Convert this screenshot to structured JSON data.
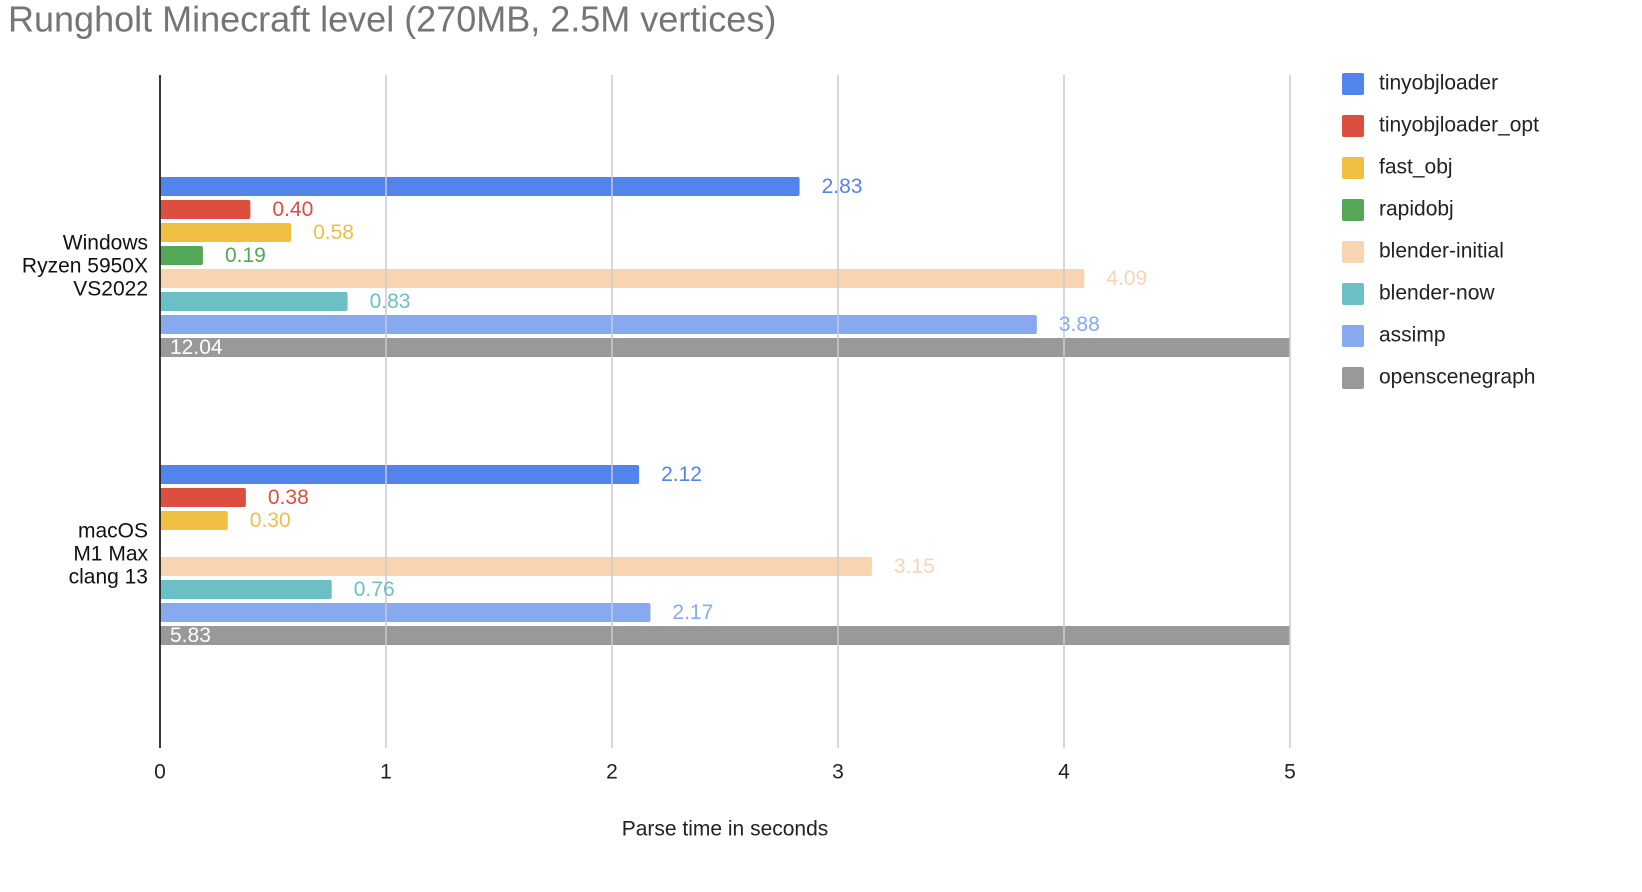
{
  "chart_data": {
    "type": "bar",
    "orientation": "horizontal",
    "title": "Rungholt Minecraft level (270MB, 2.5M vertices)",
    "x_label": "Parse time in seconds",
    "categories": [
      [
        "Windows",
        "Ryzen 5950X",
        "VS2022"
      ],
      [
        "macOS",
        "M1 Max",
        "clang 13"
      ]
    ],
    "series": [
      {
        "name": "tinyobjloader",
        "color": "#5383ec",
        "values": [
          2.83,
          2.12
        ],
        "value_labels": [
          "2.83",
          "2.12"
        ]
      },
      {
        "name": "tinyobjloader_opt",
        "color": "#dc4e3e",
        "values": [
          0.4,
          0.38
        ],
        "value_labels": [
          "0.40",
          "0.38"
        ]
      },
      {
        "name": "fast_obj",
        "color": "#f0bf42",
        "values": [
          0.58,
          0.3
        ],
        "value_labels": [
          "0.58",
          "0.30"
        ]
      },
      {
        "name": "rapidobj",
        "color": "#55a758",
        "values": [
          0.19,
          null
        ],
        "value_labels": [
          "0.19",
          null
        ]
      },
      {
        "name": "blender-initial",
        "color": "#f8d4b3",
        "values": [
          4.09,
          3.15
        ],
        "value_labels": [
          "4.09",
          "3.15"
        ]
      },
      {
        "name": "blender-now",
        "color": "#6cbfc4",
        "values": [
          0.83,
          0.76
        ],
        "value_labels": [
          "0.83",
          "0.76"
        ]
      },
      {
        "name": "assimp",
        "color": "#87a9f0",
        "values": [
          3.88,
          2.17
        ],
        "value_labels": [
          "3.88",
          "2.17"
        ]
      },
      {
        "name": "openscenegraph",
        "color": "#999999",
        "values": [
          12.04,
          5.83
        ],
        "value_labels": [
          "12.04",
          "5.83"
        ]
      }
    ],
    "xlim": [
      0,
      5
    ],
    "xticks": [
      0,
      1,
      2,
      3,
      4,
      5
    ],
    "grid": true,
    "legend": "right"
  }
}
